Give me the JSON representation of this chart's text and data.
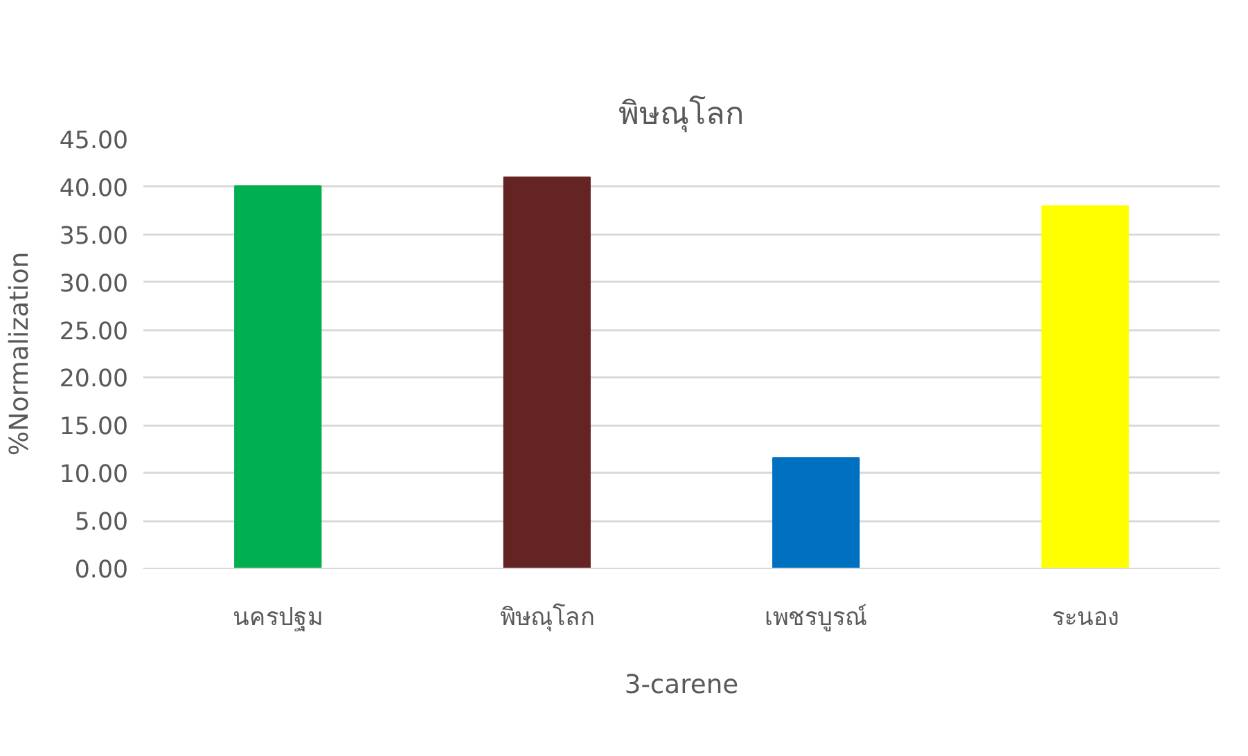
{
  "chart_data": {
    "type": "bar",
    "title": "พิษณุโลก",
    "xlabel": "3-carene",
    "ylabel": "%Normalization",
    "categories": [
      "นครปฐม",
      "พิษณุโลก",
      "เพชรบูรณ์",
      "ระนอง"
    ],
    "values": [
      40.1,
      41.0,
      11.6,
      38.0
    ],
    "colors": [
      "#00b050",
      "#632423",
      "#0070c0",
      "#ffff00"
    ],
    "ylim": [
      0,
      45
    ],
    "yticks": [
      {
        "value": 0,
        "label": "0.00"
      },
      {
        "value": 5,
        "label": "5.00"
      },
      {
        "value": 10,
        "label": "10.00"
      },
      {
        "value": 15,
        "label": "15.00"
      },
      {
        "value": 20,
        "label": "20.00"
      },
      {
        "value": 25,
        "label": "25.00"
      },
      {
        "value": 30,
        "label": "30.00"
      },
      {
        "value": 35,
        "label": "35.00"
      },
      {
        "value": 40,
        "label": "40.00"
      },
      {
        "value": 45,
        "label": "45.00"
      }
    ],
    "grid": "y"
  }
}
